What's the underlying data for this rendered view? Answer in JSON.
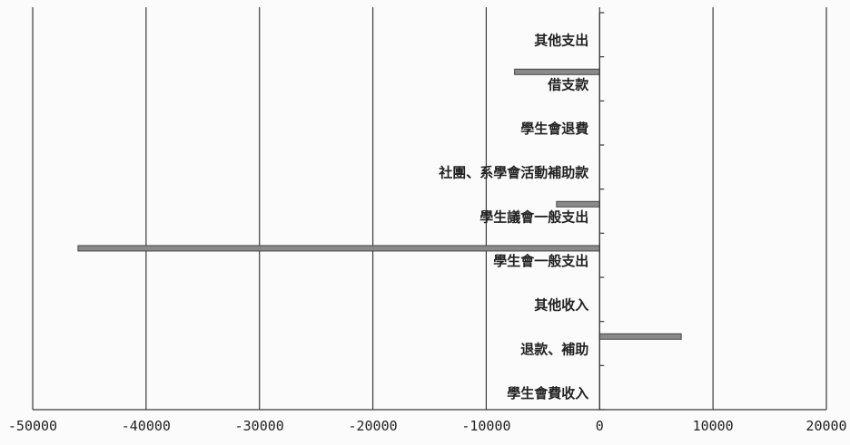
{
  "chart_data": {
    "type": "bar",
    "orientation": "horizontal",
    "categories": [
      "學生會費收入",
      "退款、補助",
      "其他收入",
      "學生會一般支出",
      "學生議會一般支出",
      "社團、系學會活動補助款",
      "學生會退費",
      "借支款",
      "其他支出"
    ],
    "values": [
      0,
      7200,
      0,
      -46000,
      -3800,
      0,
      0,
      -7500,
      0
    ],
    "xlim": [
      -50000,
      20000
    ],
    "xticks": [
      "-50000",
      "-40000",
      "-30000",
      "-20000",
      "-10000",
      "0",
      "10000",
      "20000"
    ],
    "grid": true,
    "colors": {
      "bar": "#8a8a8a",
      "grid": "#3a3a3a"
    }
  }
}
